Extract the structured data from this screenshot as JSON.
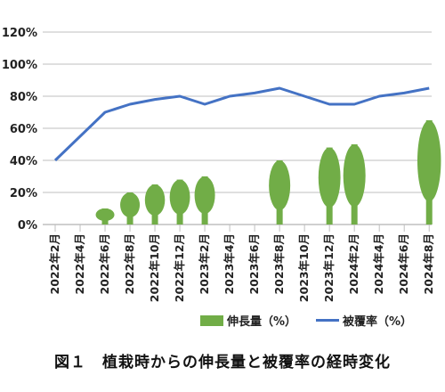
{
  "caption": "図１　植栽時からの伸長量と被覆率の経時変化",
  "colors": {
    "bar": "#71ad47",
    "line": "#4472c4",
    "grid": "#bfbfbf"
  },
  "chart_data": {
    "type": "bar",
    "categories": [
      "2022年2月",
      "2022年4月",
      "2022年6月",
      "2022年8月",
      "2022年10月",
      "2022年12月",
      "2023年2月",
      "2023年4月",
      "2023年6月",
      "2023年8月",
      "2023年10月",
      "2023年12月",
      "2024年2月",
      "2024年4月",
      "2024年6月",
      "2024年8月"
    ],
    "ytick_labels": [
      "0%",
      "20%",
      "40%",
      "60%",
      "80%",
      "100%",
      "120%"
    ],
    "ylim": [
      0,
      120
    ],
    "grid": true,
    "legend_position": "bottom",
    "series": [
      {
        "name": "伸長量（%）",
        "type": "bar",
        "values": [
          null,
          null,
          10,
          20,
          25,
          28,
          30,
          null,
          null,
          40,
          null,
          48,
          50,
          null,
          null,
          65
        ]
      },
      {
        "name": "被覆率（%）",
        "type": "line",
        "values": [
          40,
          null,
          70,
          75,
          78,
          80,
          75,
          80,
          82,
          85,
          80,
          75,
          75,
          80,
          82,
          85
        ]
      }
    ]
  }
}
